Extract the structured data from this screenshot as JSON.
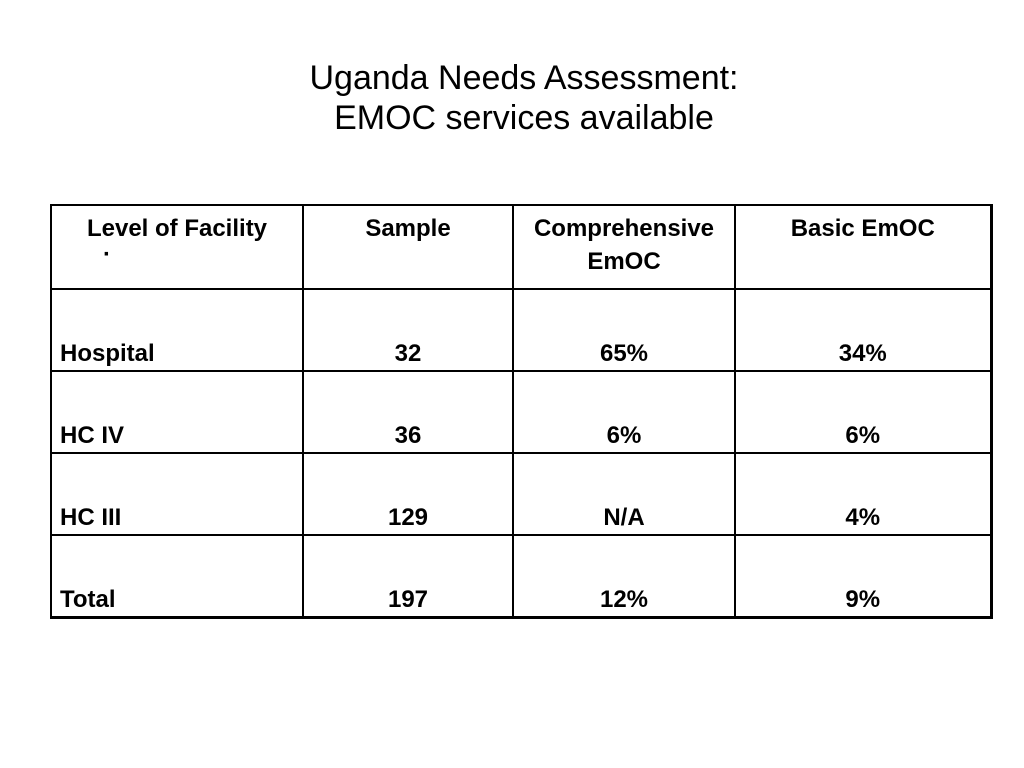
{
  "slide": {
    "title_line1": "Uganda Needs Assessment:",
    "title_line2": "EMOC services available"
  },
  "table": {
    "headers": {
      "level": "Level of Facility",
      "level_marker": "·",
      "sample": "Sample",
      "comprehensive_line1": "Comprehensive",
      "comprehensive_line2": "EmOC",
      "basic": "Basic EmOC"
    },
    "rows": [
      {
        "level": "Hospital",
        "sample": "32",
        "comprehensive": "65%",
        "basic": "34%"
      },
      {
        "level": "HC IV",
        "sample": "36",
        "comprehensive": "6%",
        "basic": "6%"
      },
      {
        "level": "HC III",
        "sample": "129",
        "comprehensive": "N/A",
        "basic": "4%"
      },
      {
        "level": "Total",
        "sample": "197",
        "comprehensive": "12%",
        "basic": "9%"
      }
    ]
  }
}
